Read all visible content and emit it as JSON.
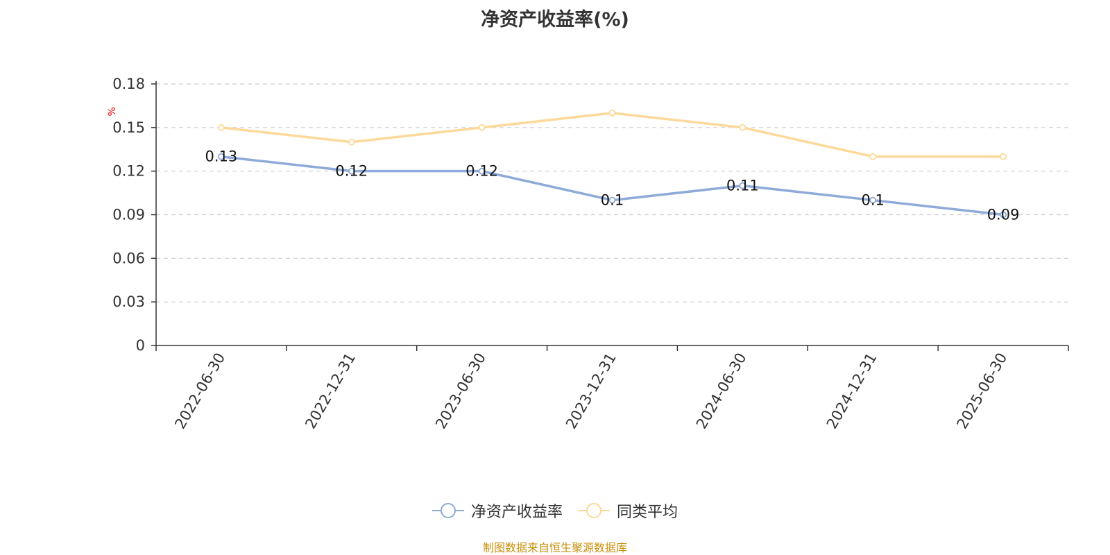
{
  "title": "净资产收益率(%)",
  "source": "制图数据来自恒生聚源数据库",
  "legend": {
    "series_0": "净资产收益率",
    "series_1": "同类平均"
  },
  "chart_data": {
    "type": "line",
    "title": "净资产收益率(%)",
    "ylabel": "%",
    "ylim": [
      0,
      0.18
    ],
    "yticks": [
      "0",
      "0.03",
      "0.06",
      "0.09",
      "0.12",
      "0.15",
      "0.18"
    ],
    "grid": true,
    "legend_position": "bottom",
    "categories": [
      "2022-06-30",
      "2022-12-31",
      "2023-06-30",
      "2023-12-31",
      "2024-06-30",
      "2024-12-31",
      "2025-06-30"
    ],
    "series": [
      {
        "name": "净资产收益率",
        "color": "#8eaad8",
        "values": [
          0.13,
          0.12,
          0.12,
          0.1,
          0.11,
          0.1,
          0.09
        ],
        "data_labels": [
          "0.13",
          "0.12",
          "0.12",
          "0.1",
          "0.11",
          "0.1",
          "0.09"
        ]
      },
      {
        "name": "同类平均",
        "color": "#fcd999",
        "values": [
          0.15,
          0.14,
          0.15,
          0.16,
          0.15,
          0.13,
          0.13
        ]
      }
    ]
  }
}
